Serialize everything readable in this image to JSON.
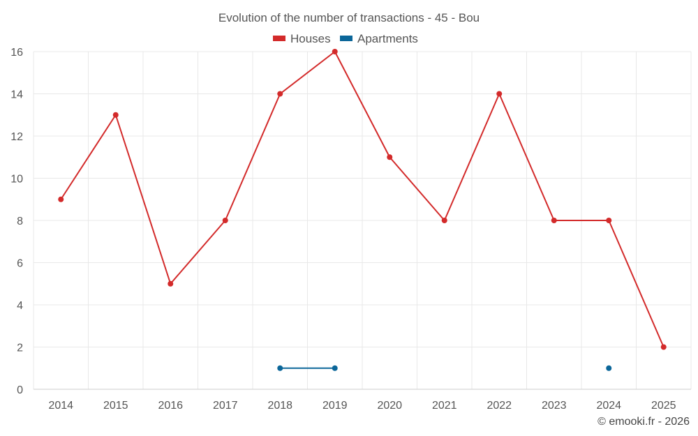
{
  "chart_data": {
    "type": "line",
    "title": "Evolution of the number of transactions - 45 - Bou",
    "categories": [
      "2014",
      "2015",
      "2016",
      "2017",
      "2018",
      "2019",
      "2020",
      "2021",
      "2022",
      "2023",
      "2024",
      "2025"
    ],
    "series": [
      {
        "name": "Houses",
        "color": "#d32a2a",
        "values": [
          9,
          13,
          5,
          8,
          14,
          16,
          11,
          8,
          14,
          8,
          8,
          2
        ]
      },
      {
        "name": "Apartments",
        "color": "#0b6699",
        "values": [
          null,
          null,
          null,
          null,
          1,
          1,
          null,
          null,
          null,
          null,
          1,
          null
        ]
      }
    ],
    "ylim": [
      0,
      16
    ],
    "yticks": [
      0,
      2,
      4,
      6,
      8,
      10,
      12,
      14,
      16
    ],
    "xlabel": "",
    "ylabel": "",
    "legend_position": "top-center",
    "grid": true
  },
  "credit": "© emooki.fr - 2026"
}
